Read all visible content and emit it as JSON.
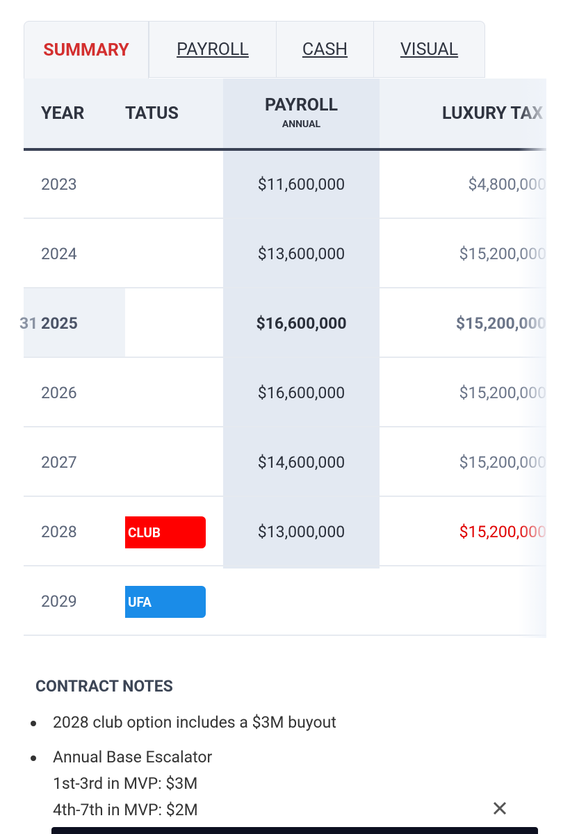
{
  "tabs": [
    "SUMMARY",
    "PAYROLL",
    "CASH",
    "VISUAL"
  ],
  "table": {
    "headers": {
      "year": "YEAR",
      "status": "TATUS",
      "payroll": "PAYROLL",
      "payroll_sub": "ANNUAL",
      "luxury_tax": "LUXURY TAX"
    },
    "rows": [
      {
        "year": "2023",
        "status": null,
        "payroll": "$11,600,000",
        "luxury_tax": "$4,800,000"
      },
      {
        "year": "2024",
        "status": null,
        "payroll": "$13,600,000",
        "luxury_tax": "$15,200,000"
      },
      {
        "prefix": "31",
        "year": "2025",
        "status": null,
        "payroll": "$16,600,000",
        "luxury_tax": "$15,200,000",
        "current": true
      },
      {
        "year": "2026",
        "status": null,
        "payroll": "$16,600,000",
        "luxury_tax": "$15,200,000"
      },
      {
        "year": "2027",
        "status": null,
        "payroll": "$14,600,000",
        "luxury_tax": "$15,200,000"
      },
      {
        "year": "2028",
        "status": "CLUB",
        "status_color": "#ff0000",
        "payroll": "$13,000,000",
        "luxury_tax": "$15,200,000",
        "luxury_tax_color": "#e00000"
      },
      {
        "year": "2029",
        "status": "UFA",
        "status_color": "#1a8ce8",
        "payroll": null,
        "luxury_tax": null
      }
    ]
  },
  "notes": {
    "title": "CONTRACT NOTES",
    "items": [
      {
        "text": "2028 club option includes a $3M buyout",
        "lines": []
      },
      {
        "text": "Annual Base Escalator",
        "lines": [
          "1st-3rd in MVP: $3M",
          "4th-7th in MVP: $2M"
        ]
      }
    ]
  }
}
